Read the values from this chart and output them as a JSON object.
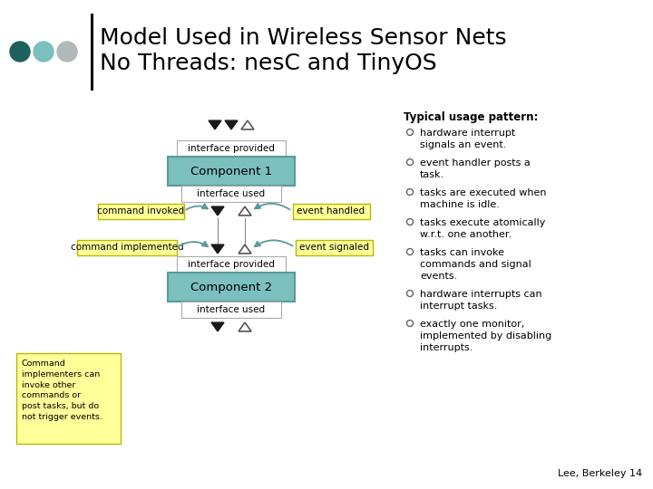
{
  "bg_color": "#ffffff",
  "title_line1": "Model Used in Wireless Sensor Nets",
  "title_line2": "No Threads: nesC and TinyOS",
  "title_color": "#000000",
  "title_fontsize": 18,
  "accent_dots": [
    "#1e5f5f",
    "#7bbfbf",
    "#b0b8b8"
  ],
  "component_fill": "#7bbfbf",
  "component_stroke": "#5a9a9a",
  "label_fill": "#ffff99",
  "label_stroke": "#b8b800",
  "text_color": "#000000",
  "right_text_header": "Typical usage pattern:",
  "right_text_bullets": [
    "hardware interrupt\nsignals an event.",
    "event handler posts a\ntask.",
    "tasks are executed when\nmachine is idle.",
    "tasks execute atomically\nw.r.t. one another.",
    "tasks can invoke\ncommands and signal\nevents.",
    "hardware interrupts can\ninterrupt tasks.",
    "exactly one monitor,\nimplemented by disabling\ninterrupts."
  ],
  "footer": "Lee, Berkeley 14",
  "comp1_label": "Component 1",
  "comp2_label": "Component 2",
  "if_provided_top": "interface provided",
  "if_used_mid": "interface used",
  "if_provided_bot": "interface provided",
  "if_used_bot": "interface used",
  "cmd_invoked": "command invoked",
  "cmd_implemented": "command implemented",
  "evt_handled": "event handled",
  "evt_signaled": "event signaled",
  "note_text": "Command\nimplementers can\ninvoke other\ncommands or\npost tasks, but do\nnot trigger events.",
  "arrow_color": "#5a9a9a"
}
